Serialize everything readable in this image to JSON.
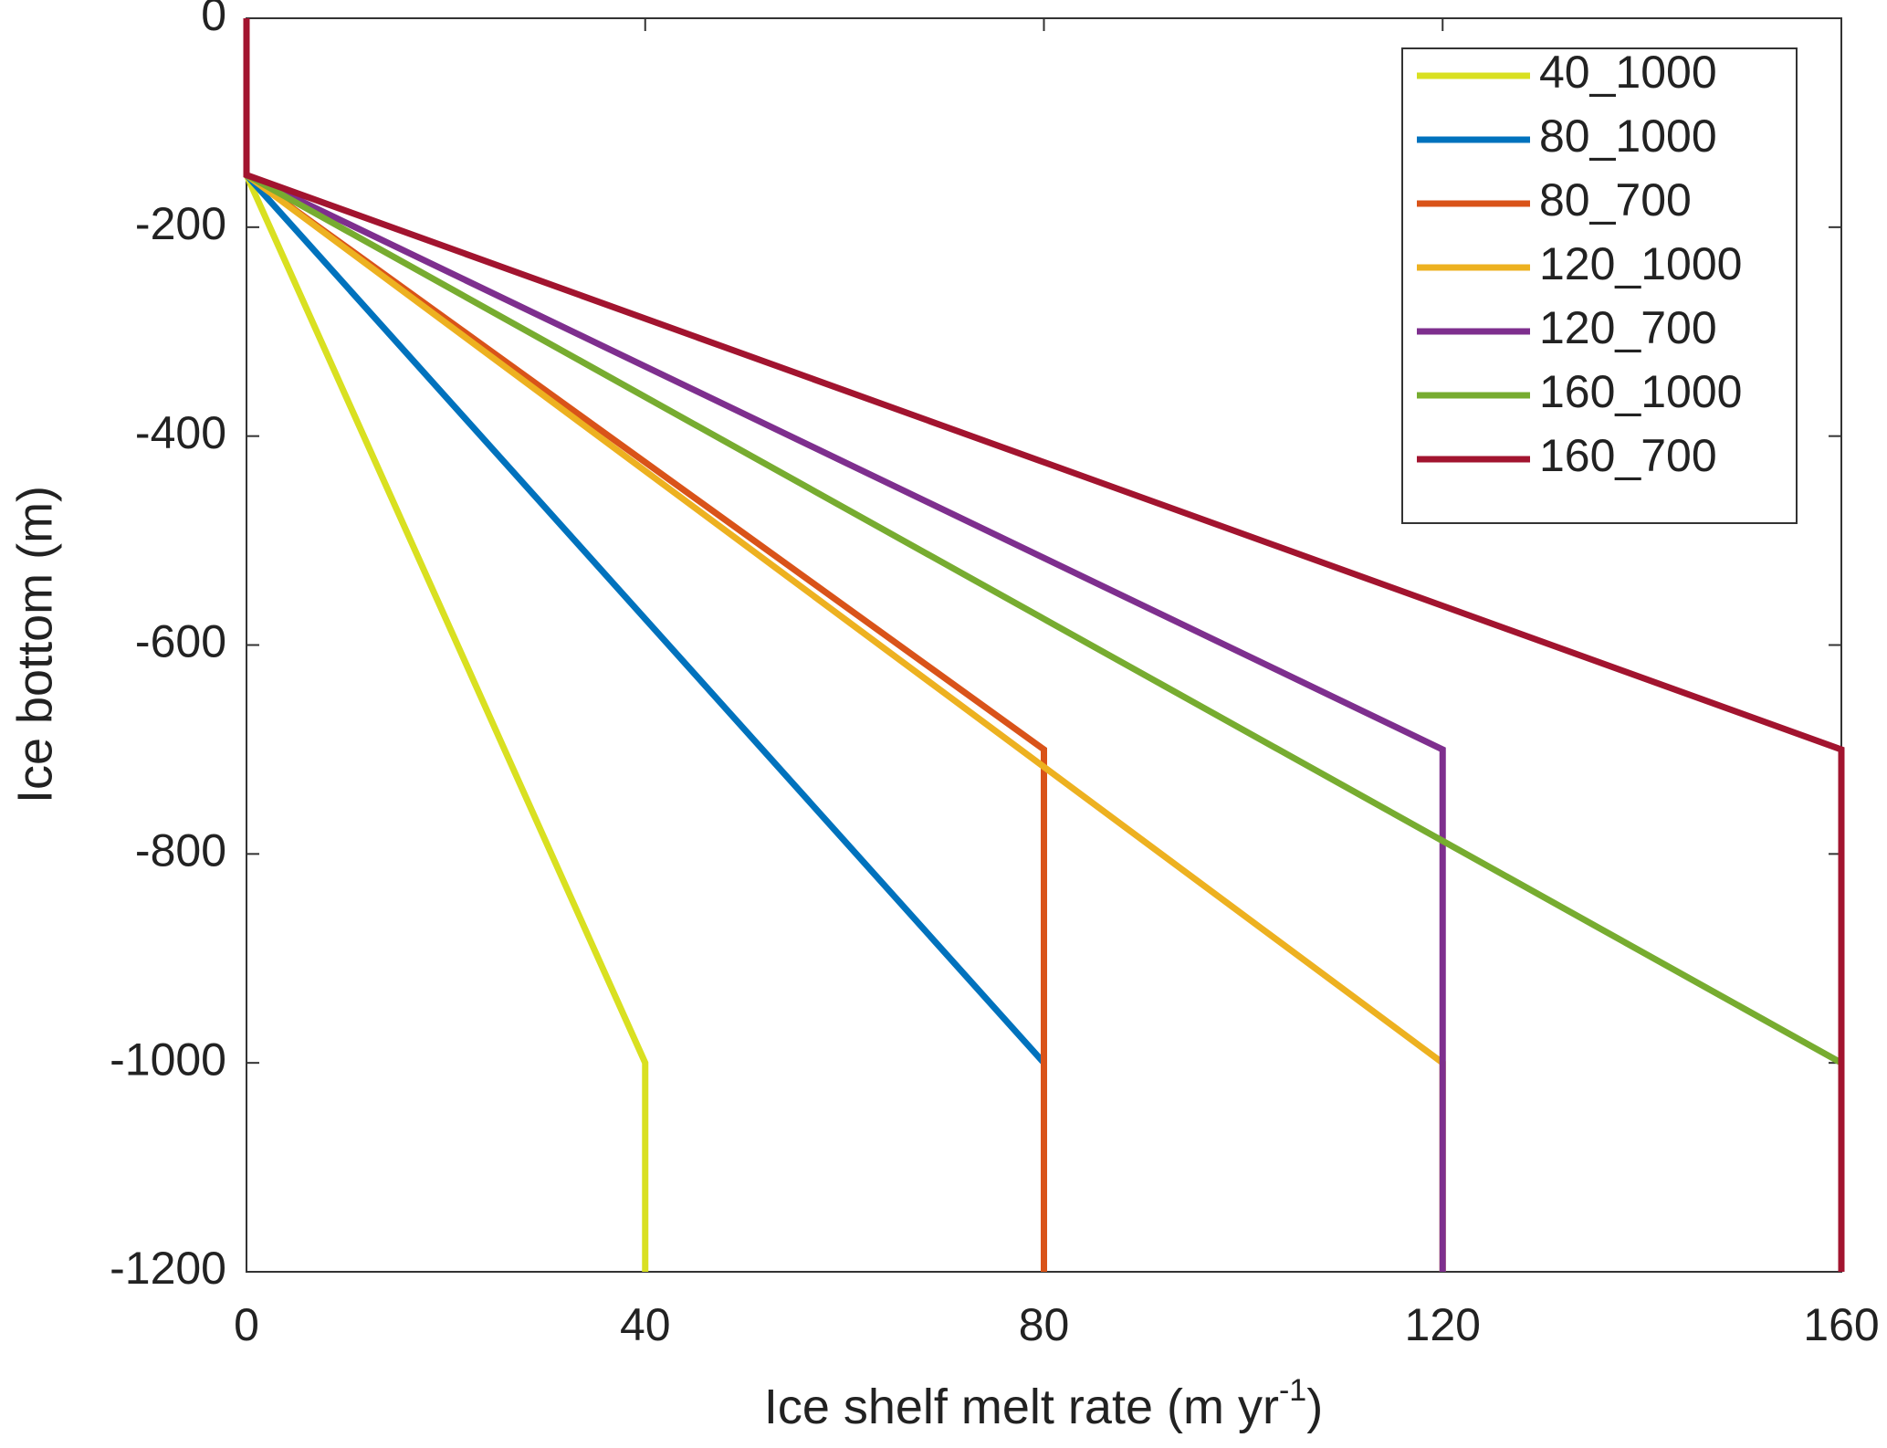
{
  "chart_data": {
    "type": "line",
    "xlabel": "Ice shelf melt rate (m yr",
    "xlabel_sup": "-1",
    "xlabel_end": ")",
    "ylabel": "Ice bottom (m)",
    "xlim": [
      0,
      160
    ],
    "xticks": [
      0,
      40,
      80,
      120,
      160
    ],
    "ylim": [
      -1200,
      0
    ],
    "yticks": [
      -1200,
      -1000,
      -800,
      -600,
      -400,
      -200,
      0
    ],
    "grid": false,
    "legend": "northeast",
    "series": [
      {
        "name": "40_1000",
        "color": "#d9e021",
        "x": [
          0,
          0,
          40,
          40
        ],
        "values": [
          0,
          -150,
          -1000,
          -1200
        ]
      },
      {
        "name": "80_1000",
        "color": "#0072bd",
        "x": [
          0,
          0,
          80,
          80
        ],
        "values": [
          0,
          -150,
          -1000,
          -1200
        ]
      },
      {
        "name": "80_700",
        "color": "#d95319",
        "x": [
          0,
          0,
          80,
          80
        ],
        "values": [
          0,
          -150,
          -700,
          -1200
        ]
      },
      {
        "name": "120_1000",
        "color": "#edb120",
        "x": [
          0,
          0,
          120,
          120
        ],
        "values": [
          0,
          -150,
          -1000,
          -1200
        ]
      },
      {
        "name": "120_700",
        "color": "#7e2f8e",
        "x": [
          0,
          0,
          120,
          120
        ],
        "values": [
          0,
          -150,
          -700,
          -1200
        ]
      },
      {
        "name": "160_1000",
        "color": "#77ac30",
        "x": [
          0,
          0,
          160,
          160
        ],
        "values": [
          0,
          -150,
          -1000,
          -1200
        ]
      },
      {
        "name": "160_700",
        "color": "#a2142f",
        "x": [
          0,
          0,
          160,
          160
        ],
        "values": [
          0,
          -150,
          -700,
          -1200
        ]
      }
    ]
  }
}
